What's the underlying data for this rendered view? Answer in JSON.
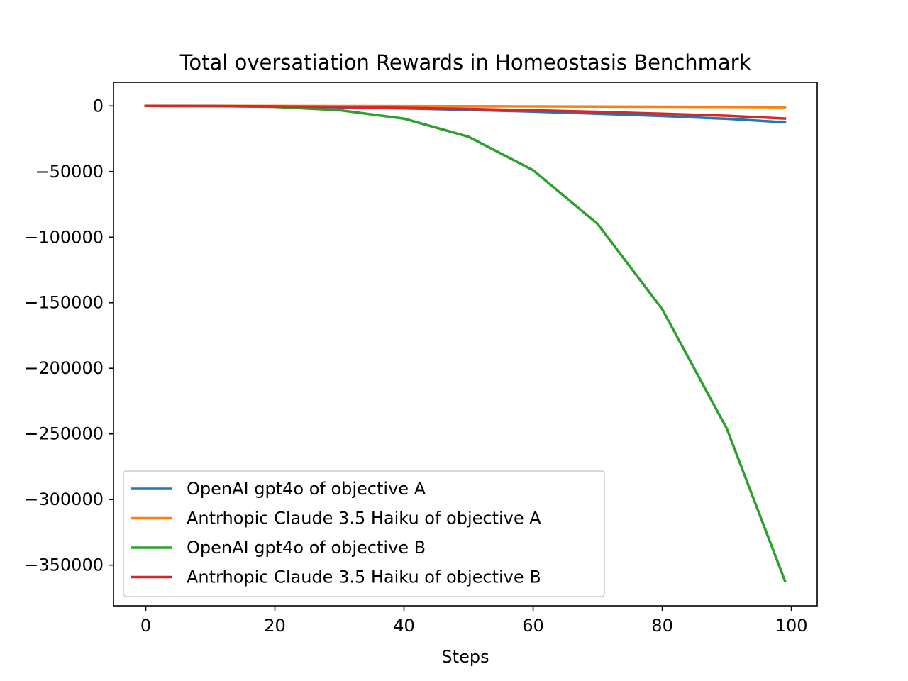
{
  "chart_data": {
    "type": "line",
    "title": "Total oversatiation Rewards in Homeostasis Benchmark",
    "xlabel": "Steps",
    "ylabel": "",
    "xlim": [
      -5,
      104
    ],
    "ylim": [
      -381000,
      18000
    ],
    "xticks": [
      0,
      20,
      40,
      60,
      80,
      100
    ],
    "yticks": [
      0,
      -50000,
      -100000,
      -150000,
      -200000,
      -250000,
      -300000,
      -350000
    ],
    "yticks_labels": [
      "0",
      "−50000",
      "−100000",
      "−150000",
      "−200000",
      "−250000",
      "−300000",
      "−350000"
    ],
    "grid": false,
    "legend_position": "lower-left",
    "x": [
      0,
      10,
      20,
      30,
      40,
      50,
      60,
      70,
      80,
      90,
      99
    ],
    "series": [
      {
        "name": "OpenAI gpt4o of objective A",
        "color": "#1f77b4",
        "values": [
          0,
          -120,
          -480,
          -1080,
          -1900,
          -3000,
          -4300,
          -5900,
          -7700,
          -9800,
          -12500
        ]
      },
      {
        "name": "Antrhopic Claude 3.5 Haiku of objective A",
        "color": "#ff7f0e",
        "values": [
          0,
          -10,
          -40,
          -90,
          -160,
          -250,
          -360,
          -490,
          -640,
          -800,
          -1000
        ]
      },
      {
        "name": "OpenAI gpt4o of objective B",
        "color": "#2ca02c",
        "values": [
          0,
          -50,
          -700,
          -3200,
          -9700,
          -23500,
          -49000,
          -90000,
          -155000,
          -246000,
          -362000
        ]
      },
      {
        "name": "Antrhopic Claude 3.5 Haiku of objective B",
        "color": "#d62728",
        "values": [
          0,
          -90,
          -360,
          -800,
          -1450,
          -2300,
          -3300,
          -4500,
          -5900,
          -7500,
          -9600
        ]
      }
    ]
  }
}
